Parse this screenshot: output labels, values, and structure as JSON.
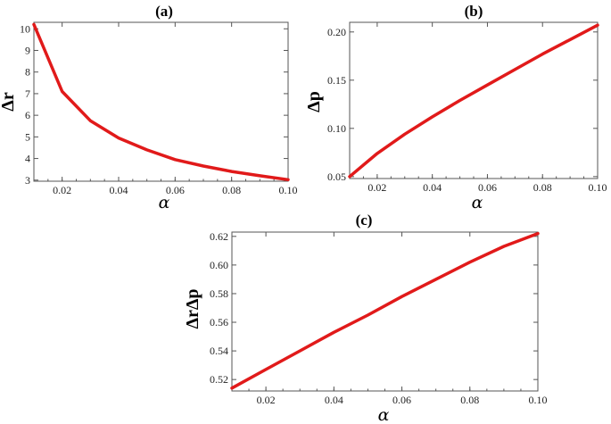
{
  "chart_data": [
    {
      "id": "a",
      "type": "line",
      "title": "(a)",
      "xlabel": "α",
      "ylabel": "Δr",
      "xlim": [
        0.01,
        0.1
      ],
      "ylim": [
        2.95,
        10.3
      ],
      "xticks": [
        0.02,
        0.04,
        0.06,
        0.08,
        0.1
      ],
      "xtick_labels": [
        "0.02",
        "0.04",
        "0.06",
        "0.08",
        "0.10"
      ],
      "yticks": [
        3,
        4,
        5,
        6,
        7,
        8,
        9,
        10
      ],
      "ytick_labels": [
        "3",
        "4",
        "5",
        "6",
        "7",
        "8",
        "9",
        "10"
      ],
      "color": "#e11a1a",
      "series": [
        {
          "x": [
            0.01,
            0.02,
            0.03,
            0.04,
            0.05,
            0.06,
            0.07,
            0.08,
            0.09,
            0.1
          ],
          "y": [
            10.2,
            7.1,
            5.75,
            4.95,
            4.4,
            3.95,
            3.65,
            3.4,
            3.2,
            3.02
          ]
        }
      ]
    },
    {
      "id": "b",
      "type": "line",
      "title": "(b)",
      "xlabel": "α",
      "ylabel": "Δp",
      "xlim": [
        0.01,
        0.1
      ],
      "ylim": [
        0.048,
        0.21
      ],
      "xticks": [
        0.02,
        0.04,
        0.06,
        0.08,
        0.1
      ],
      "xtick_labels": [
        "0.02",
        "0.04",
        "0.06",
        "0.08",
        "0.10"
      ],
      "yticks": [
        0.05,
        0.1,
        0.15,
        0.2
      ],
      "ytick_labels": [
        "0.05",
        "0.10",
        "0.15",
        "0.20"
      ],
      "color": "#e11a1a",
      "series": [
        {
          "x": [
            0.01,
            0.02,
            0.03,
            0.04,
            0.05,
            0.06,
            0.07,
            0.08,
            0.09,
            0.1
          ],
          "y": [
            0.05,
            0.074,
            0.094,
            0.112,
            0.129,
            0.145,
            0.161,
            0.177,
            0.192,
            0.207
          ]
        }
      ]
    },
    {
      "id": "c",
      "type": "line",
      "title": "(c)",
      "xlabel": "α",
      "ylabel": "ΔrΔp",
      "xlim": [
        0.01,
        0.1
      ],
      "ylim": [
        0.512,
        0.623
      ],
      "xticks": [
        0.02,
        0.04,
        0.06,
        0.08,
        0.1
      ],
      "xtick_labels": [
        "0.02",
        "0.04",
        "0.06",
        "0.08",
        "0.10"
      ],
      "yticks": [
        0.52,
        0.54,
        0.56,
        0.58,
        0.6,
        0.62
      ],
      "ytick_labels": [
        "0.52",
        "0.54",
        "0.56",
        "0.58",
        "0.60",
        "0.62"
      ],
      "color": "#e11a1a",
      "series": [
        {
          "x": [
            0.01,
            0.02,
            0.03,
            0.04,
            0.05,
            0.06,
            0.07,
            0.08,
            0.09,
            0.1
          ],
          "y": [
            0.514,
            0.527,
            0.54,
            0.553,
            0.565,
            0.578,
            0.59,
            0.602,
            0.613,
            0.622
          ]
        }
      ]
    }
  ]
}
